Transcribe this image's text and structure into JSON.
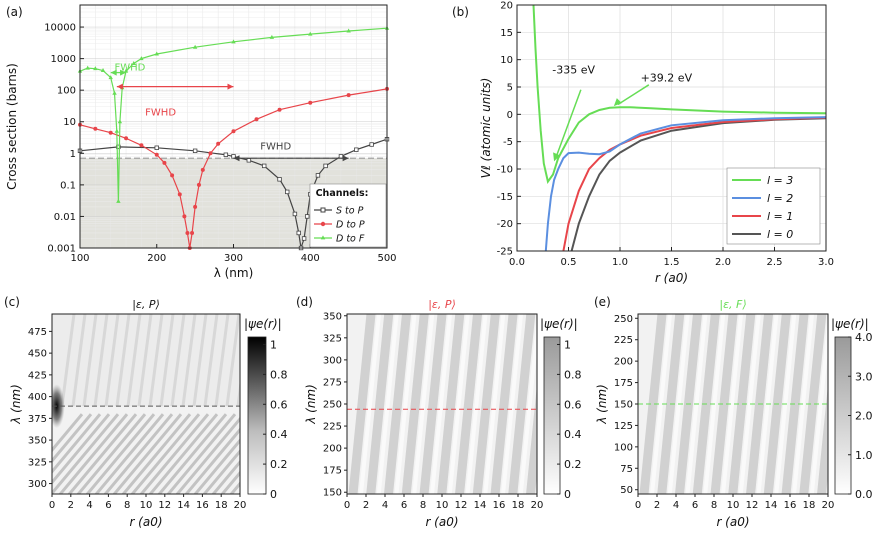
{
  "panel_labels": {
    "a": "(a)",
    "b": "(b)",
    "c": "(c)",
    "d": "(d)",
    "e": "(e)"
  },
  "colors": {
    "s": "#444444",
    "d": "#e8454a",
    "f": "#66dd55",
    "l3": "#66dd55",
    "l2": "#5b8fe0",
    "l1": "#e8454a",
    "l0": "#555555"
  },
  "chart_data": [
    {
      "id": "a",
      "type": "line",
      "ylog": true,
      "xlabel": "λ (nm)",
      "ylabel": "Cross section (barns)",
      "xlim": [
        100,
        500
      ],
      "ylim": [
        0.001,
        50000
      ],
      "x_ticks": [
        "100",
        "200",
        "300",
        "400",
        "500"
      ],
      "y_ticks": [
        "0.001",
        "0.01",
        "0.1",
        "1",
        "10",
        "100",
        "1000",
        "10000"
      ],
      "legend_title": "Channels:",
      "legend_position": "bottom-right",
      "shaded_below": 0.7,
      "series": [
        {
          "name": "S to P",
          "color": "#444444",
          "x": [
            100,
            150,
            200,
            250,
            290,
            300,
            320,
            340,
            360,
            370,
            380,
            385,
            388,
            392,
            396,
            400,
            410,
            420,
            440,
            460,
            480,
            500
          ],
          "y": [
            1.2,
            1.6,
            1.5,
            1.2,
            0.9,
            0.8,
            0.6,
            0.4,
            0.15,
            0.06,
            0.012,
            0.003,
            0.001,
            0.002,
            0.01,
            0.05,
            0.2,
            0.4,
            0.8,
            1.3,
            1.9,
            2.8
          ]
        },
        {
          "name": "D to P",
          "color": "#e8454a",
          "x": [
            100,
            120,
            140,
            160,
            180,
            200,
            210,
            220,
            230,
            236,
            240,
            243,
            246,
            250,
            255,
            260,
            270,
            280,
            300,
            330,
            360,
            400,
            450,
            500
          ],
          "y": [
            8,
            6,
            4.5,
            3,
            1.8,
            0.9,
            0.5,
            0.2,
            0.05,
            0.01,
            0.003,
            0.001,
            0.003,
            0.02,
            0.1,
            0.3,
            1,
            2,
            5,
            12,
            24,
            40,
            70,
            110
          ]
        },
        {
          "name": "D to F",
          "color": "#66dd55",
          "x": [
            100,
            110,
            120,
            130,
            140,
            145,
            148,
            150,
            152,
            155,
            160,
            170,
            180,
            200,
            250,
            300,
            350,
            400,
            450,
            500
          ],
          "y": [
            400,
            500,
            480,
            420,
            250,
            80,
            5,
            0.03,
            10,
            120,
            400,
            700,
            1000,
            1400,
            2300,
            3400,
            4700,
            6000,
            7500,
            9200
          ]
        }
      ],
      "annotations": [
        {
          "text": "FWHD",
          "color": "#66dd55",
          "x": 165,
          "y": 420,
          "span": [
            140,
            160
          ]
        },
        {
          "text": "FWHD",
          "color": "#e8454a",
          "x": 205,
          "y": 16,
          "span": [
            148,
            300
          ]
        },
        {
          "text": "FWHD",
          "color": "#444444",
          "x": 355,
          "y": 1.3,
          "span": [
            300,
            450
          ]
        }
      ]
    },
    {
      "id": "b",
      "type": "line",
      "xlabel": "r (a0)",
      "ylabel": "Vℓ (atomic units)",
      "xlim": [
        0,
        3
      ],
      "ylim": [
        -25,
        20
      ],
      "x_ticks": [
        "0.0",
        "0.5",
        "1.0",
        "1.5",
        "2.0",
        "2.5",
        "3.0"
      ],
      "y_ticks": [
        "-25",
        "-20",
        "-15",
        "-10",
        "-5",
        "0",
        "5",
        "10",
        "15",
        "20"
      ],
      "legend_position": "bottom-right",
      "series": [
        {
          "name": "l = 3",
          "color": "#66dd55",
          "x": [
            0.16,
            0.18,
            0.2,
            0.23,
            0.26,
            0.3,
            0.35,
            0.4,
            0.5,
            0.6,
            0.7,
            0.8,
            0.9,
            1.0,
            1.1,
            1.3,
            1.5,
            2.0,
            2.5,
            3.0
          ],
          "y": [
            20,
            12,
            5,
            -3,
            -9,
            -12.3,
            -11,
            -8,
            -4.5,
            -1.5,
            0,
            0.8,
            1.2,
            1.3,
            1.3,
            1.1,
            0.9,
            0.5,
            0.3,
            0.2
          ]
        },
        {
          "name": "l = 2",
          "color": "#5b8fe0",
          "x": [
            0.28,
            0.3,
            0.33,
            0.36,
            0.4,
            0.45,
            0.5,
            0.6,
            0.7,
            0.8,
            0.9,
            1.0,
            1.2,
            1.5,
            2.0,
            2.5,
            3.0
          ],
          "y": [
            -25,
            -20,
            -15,
            -12,
            -10,
            -8,
            -7.1,
            -7,
            -7.2,
            -7.3,
            -6.8,
            -5.5,
            -3.5,
            -2,
            -1.1,
            -0.7,
            -0.5
          ]
        },
        {
          "name": "l = 1",
          "color": "#e8454a",
          "x": [
            0.45,
            0.5,
            0.6,
            0.7,
            0.8,
            0.9,
            1.0,
            1.2,
            1.5,
            2.0,
            2.5,
            3.0
          ],
          "y": [
            -25,
            -20,
            -14,
            -10,
            -8,
            -6.5,
            -5.5,
            -3.9,
            -2.5,
            -1.4,
            -0.9,
            -0.6
          ]
        },
        {
          "name": "l = 0",
          "color": "#555555",
          "x": [
            0.53,
            0.6,
            0.7,
            0.8,
            0.9,
            1.0,
            1.2,
            1.5,
            2.0,
            2.5,
            3.0
          ],
          "y": [
            -25,
            -20,
            -15,
            -11,
            -8.5,
            -7,
            -4.8,
            -3,
            -1.6,
            -1,
            -0.7
          ]
        }
      ],
      "annotations": [
        {
          "text": "-335 eV",
          "x": 0.55,
          "y": 7.5
        },
        {
          "text": "+39.2 eV",
          "x": 1.45,
          "y": 6
        }
      ]
    },
    {
      "id": "c",
      "type": "heatmap",
      "title": "|ε, P⟩",
      "title_color": "#111111",
      "xlabel": "r (a0)",
      "ylabel": "λ (nm)",
      "xlim": [
        0,
        20
      ],
      "ylim": [
        288,
        495
      ],
      "x_ticks": [
        "0",
        "2",
        "4",
        "6",
        "8",
        "10",
        "12",
        "14",
        "16",
        "18",
        "20"
      ],
      "y_ticks": [
        "300",
        "325",
        "350",
        "375",
        "400",
        "425",
        "450",
        "475"
      ],
      "dashed_line_at": 389,
      "dashed_color": "#555555",
      "colorbar_label": "|ψe(r)|",
      "colorbar_ticks": [
        "0",
        "0.2",
        "0.4",
        "0.6",
        "0.8",
        "1"
      ],
      "colorbar_range": [
        0,
        1.05
      ]
    },
    {
      "id": "d",
      "type": "heatmap",
      "title": "|ε, P⟩",
      "title_color": "#e8454a",
      "xlabel": "r (a0)",
      "ylabel": "λ (nm)",
      "xlim": [
        0,
        20
      ],
      "ylim": [
        148,
        352
      ],
      "x_ticks": [
        "0",
        "2",
        "4",
        "6",
        "8",
        "10",
        "12",
        "14",
        "16",
        "18",
        "20"
      ],
      "y_ticks": [
        "150",
        "175",
        "200",
        "225",
        "250",
        "275",
        "300",
        "325",
        "350"
      ],
      "dashed_line_at": 244,
      "dashed_color": "#e8454a",
      "colorbar_label": "|ψe(r)|",
      "colorbar_ticks": [
        "0",
        "0.2",
        "0.4",
        "0.6",
        "0.8",
        "1"
      ],
      "colorbar_range": [
        0,
        1.05
      ]
    },
    {
      "id": "e",
      "type": "heatmap",
      "title": "|ε, F⟩",
      "title_color": "#66dd55",
      "xlabel": "r (a0)",
      "ylabel": "λ (nm)",
      "xlim": [
        0,
        20
      ],
      "ylim": [
        45,
        255
      ],
      "x_ticks": [
        "0",
        "2",
        "4",
        "6",
        "8",
        "10",
        "12",
        "14",
        "16",
        "18",
        "20"
      ],
      "y_ticks": [
        "50",
        "75",
        "100",
        "125",
        "150",
        "175",
        "200",
        "225",
        "250"
      ],
      "dashed_line_at": 150,
      "dashed_color": "#66dd55",
      "colorbar_label": "|ψe(r)|",
      "colorbar_ticks": [
        "0.0",
        "1.0",
        "2.0",
        "3.0",
        "4.0"
      ],
      "colorbar_range": [
        0,
        4
      ]
    }
  ]
}
